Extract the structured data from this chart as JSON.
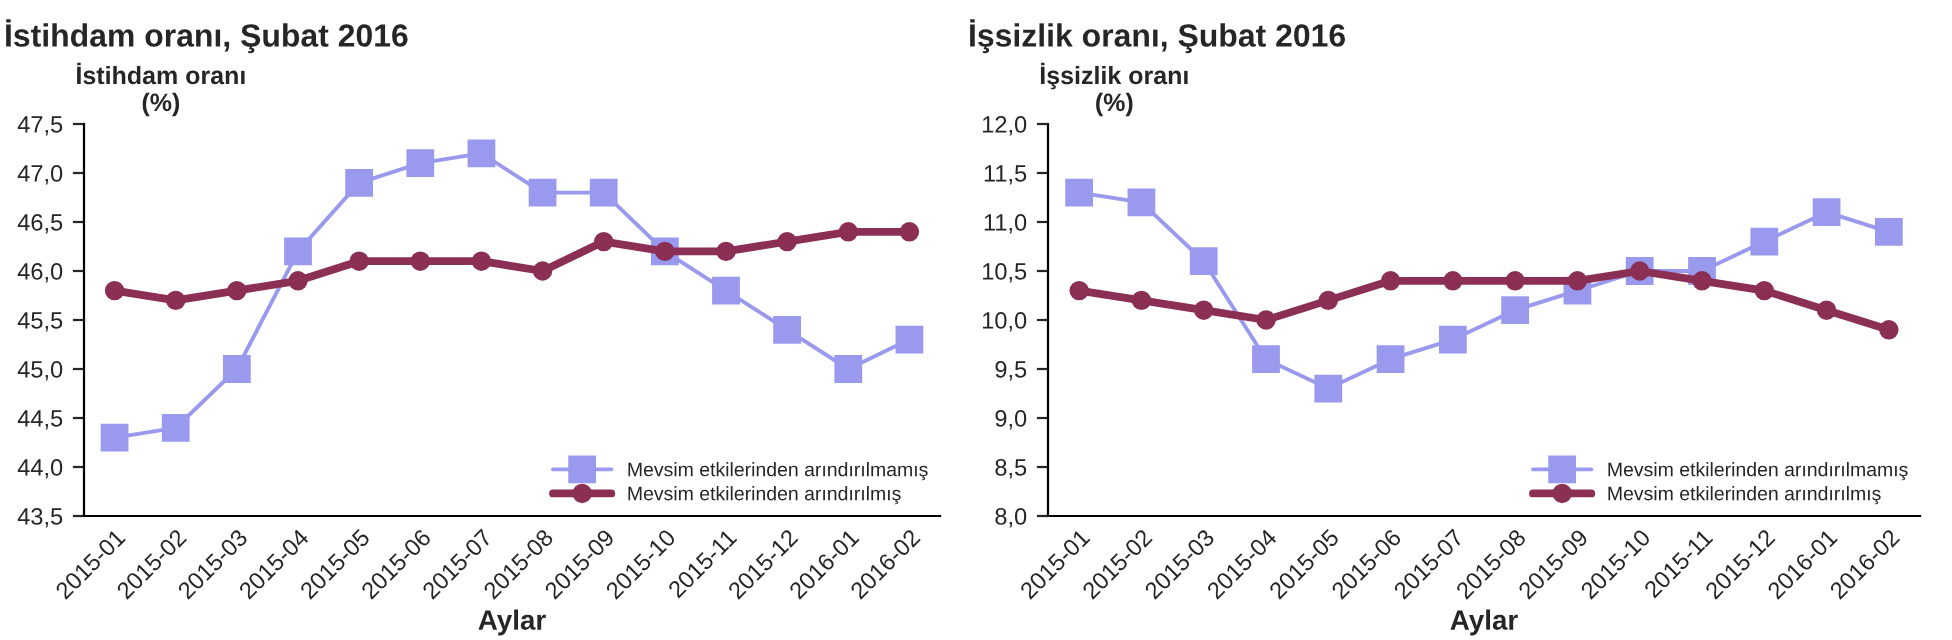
{
  "chart_data": [
    {
      "type": "line",
      "title": "İstihdam oranı, Şubat 2016",
      "ylabel": "İstihdam oranı\n(%)",
      "xlabel": "Aylar",
      "categories": [
        "2015-01",
        "2015-02",
        "2015-03",
        "2015-04",
        "2015-05",
        "2015-06",
        "2015-07",
        "2015-08",
        "2015-09",
        "2015-10",
        "2015-11",
        "2015-12",
        "2016-01",
        "2016-02"
      ],
      "series": [
        {
          "name": "Mevsim etkilerinden arındırılmamış",
          "color": "#9999ee",
          "marker": "square",
          "values": [
            44.3,
            44.4,
            45.0,
            46.2,
            46.9,
            47.1,
            47.2,
            46.8,
            46.8,
            46.2,
            45.8,
            45.4,
            45.0,
            45.3
          ]
        },
        {
          "name": "Mevsim etkilerinden arındırılmış",
          "color": "#8b2f55",
          "marker": "circle",
          "values": [
            45.8,
            45.7,
            45.8,
            45.9,
            46.1,
            46.1,
            46.1,
            46.0,
            46.3,
            46.2,
            46.2,
            46.3,
            46.4,
            46.4
          ]
        }
      ],
      "ylim": [
        43.5,
        47.5
      ],
      "yticks": [
        {
          "value": 43.5,
          "label": "43,5"
        },
        {
          "value": 44.0,
          "label": "44,0"
        },
        {
          "value": 44.5,
          "label": "44,5"
        },
        {
          "value": 45.0,
          "label": "45,0"
        },
        {
          "value": 45.5,
          "label": "45,5"
        },
        {
          "value": 46.0,
          "label": "46,0"
        },
        {
          "value": 46.5,
          "label": "46,5"
        },
        {
          "value": 47.0,
          "label": "47,0"
        },
        {
          "value": 47.5,
          "label": "47,5"
        }
      ],
      "legend": "bottom right",
      "grid": false
    },
    {
      "type": "line",
      "title": "İşsizlik oranı, Şubat 2016",
      "ylabel": "İşsizlik oranı\n(%)",
      "xlabel": "Aylar",
      "categories": [
        "2015-01",
        "2015-02",
        "2015-03",
        "2015-04",
        "2015-05",
        "2015-06",
        "2015-07",
        "2015-08",
        "2015-09",
        "2015-10",
        "2015-11",
        "2015-12",
        "2016-01",
        "2016-02"
      ],
      "series": [
        {
          "name": "Mevsim etkilerinden arındırılmamış",
          "color": "#9999ee",
          "marker": "square",
          "values": [
            11.3,
            11.2,
            10.6,
            9.6,
            9.3,
            9.6,
            9.8,
            10.1,
            10.3,
            10.5,
            10.5,
            10.8,
            11.1,
            10.9
          ]
        },
        {
          "name": "Mevsim etkilerinden arındırılmış",
          "color": "#8b2f55",
          "marker": "circle",
          "values": [
            10.3,
            10.2,
            10.1,
            10.0,
            10.2,
            10.4,
            10.4,
            10.4,
            10.4,
            10.5,
            10.4,
            10.3,
            10.1,
            9.9
          ]
        }
      ],
      "ylim": [
        8.0,
        12.0
      ],
      "yticks": [
        {
          "value": 8.0,
          "label": "8,0"
        },
        {
          "value": 8.5,
          "label": "8,5"
        },
        {
          "value": 9.0,
          "label": "9,0"
        },
        {
          "value": 9.5,
          "label": "9,5"
        },
        {
          "value": 10.0,
          "label": "10,0"
        },
        {
          "value": 10.5,
          "label": "10,5"
        },
        {
          "value": 11.0,
          "label": "11,0"
        },
        {
          "value": 11.5,
          "label": "11,5"
        },
        {
          "value": 12.0,
          "label": "12,0"
        }
      ],
      "legend": "bottom right",
      "grid": false
    }
  ]
}
